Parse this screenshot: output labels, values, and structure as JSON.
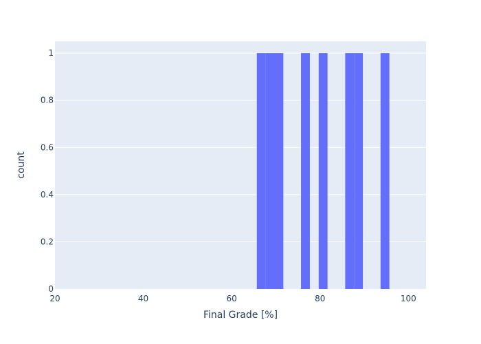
{
  "chart_data": {
    "type": "bar",
    "histogram": true,
    "xlabel": "Final Grade [%]",
    "ylabel": "count",
    "xlim": [
      20,
      104
    ],
    "ylim": [
      0,
      1.05
    ],
    "x_ticks": [
      20,
      40,
      60,
      80,
      100
    ],
    "y_ticks": [
      0,
      0.2,
      0.4,
      0.6,
      0.8,
      1
    ],
    "y_tick_labels": [
      "0",
      "0.2",
      "0.4",
      "0.6",
      "0.8",
      "1"
    ],
    "bins": [
      {
        "x0": 65.7,
        "x1": 67.7,
        "count": 1
      },
      {
        "x0": 67.7,
        "x1": 69.7,
        "count": 1
      },
      {
        "x0": 69.7,
        "x1": 71.7,
        "count": 1
      },
      {
        "x0": 75.7,
        "x1": 77.7,
        "count": 1
      },
      {
        "x0": 79.7,
        "x1": 81.7,
        "count": 1
      },
      {
        "x0": 85.7,
        "x1": 87.7,
        "count": 1
      },
      {
        "x0": 87.7,
        "x1": 89.7,
        "count": 1
      },
      {
        "x0": 93.7,
        "x1": 95.7,
        "count": 1
      }
    ],
    "colors": {
      "bar": "#636efa",
      "plot_bg": "#e5ecf6",
      "grid": "#ffffff",
      "text": "#2a3f5f"
    }
  }
}
